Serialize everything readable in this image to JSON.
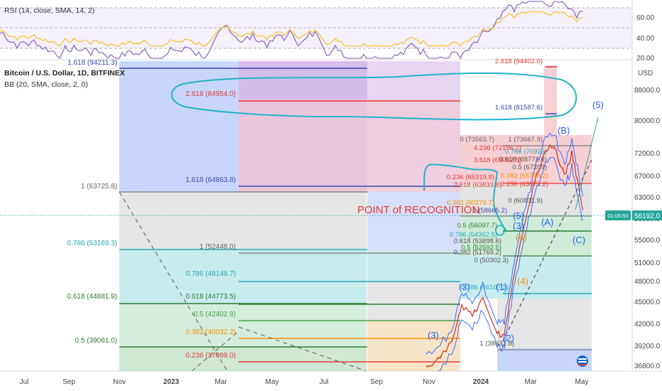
{
  "rsi": {
    "title": "RSI (14, close, SMA, 14, 2)",
    "ticks": [
      "60.00",
      "40.00",
      "20.00"
    ]
  },
  "header": {
    "title": "Bitcoin / U.S. Dollar, 1D, BITFINEX",
    "indicator": "BB (20, SMA, close, 2, 0)"
  },
  "price_axis": {
    "currency": "USD",
    "ticks": [
      "88000.0",
      "80000.0",
      "72000.0",
      "67000.0",
      "63000.0",
      "59000.0",
      "55000.0",
      "51000.0",
      "48000.0",
      "45000.0",
      "42000.0",
      "39200.0",
      "36800.0"
    ],
    "last_price": "56192.0",
    "last_price_small": "01:05:50"
  },
  "time_axis": {
    "ticks": [
      "Jul",
      "Sep",
      "Nov",
      "2023",
      "Mar",
      "May",
      "Jul",
      "Sep",
      "Nov",
      "2024",
      "Mar",
      "May"
    ]
  },
  "annotation": {
    "text": "POINT of RECOGNITION"
  },
  "colors": {
    "blue_zone": "#c9d6fb",
    "purple_zone": "#dcc3ef",
    "pink_zone": "#f7d0d4",
    "grey_zone": "#e6e6e6",
    "teal_zone": "#c8ebee",
    "green_zone": "#cfecd9",
    "orange_zone": "#fbe3c2",
    "annotation_red": "#e53935",
    "wave_blue": "#2962ff",
    "marker_cyan": "#1fb4c9"
  },
  "chart_data": {
    "type": "line",
    "fib_levels_left": [
      {
        "label": "1.618 (94211.3)"
      },
      {
        "label": "2.618 (84954.0)"
      },
      {
        "label": "1 (63725.8)"
      },
      {
        "label": "1.618 (64863.8)"
      },
      {
        "label": "0.786 (53169.3)"
      },
      {
        "label": "1 (52448.0)"
      },
      {
        "label": "0.786 (48148.7)"
      },
      {
        "label": "0.618 (44881.9)"
      },
      {
        "label": "0.618 (44773.5)"
      },
      {
        "label": "0.5 (42402.9)"
      },
      {
        "label": "0.382 (40032.2)"
      },
      {
        "label": "0.5 (39061.0)"
      },
      {
        "label": "0.236 (37099.0)"
      }
    ],
    "fib_levels_right": [
      {
        "label": "2.618 (94402.0)"
      },
      {
        "label": "1.618 (81587.6)"
      },
      {
        "label": "0 (73563.7)"
      },
      {
        "label": "1 (73667.9)"
      },
      {
        "label": "4.236 (72196.7)"
      },
      {
        "label": "0.786 (70925)"
      },
      {
        "label": "0.618 (68772.6)"
      },
      {
        "label": "0.5 (67209)"
      },
      {
        "label": "3.618 (69002.5)"
      },
      {
        "label": "0.236 (65319.8)"
      },
      {
        "label": "0.382 (65748.2)"
      },
      {
        "label": "2.618 (63833.8)"
      },
      {
        "label": "0.236 (63877.2)"
      },
      {
        "label": "0 (60831.9)"
      },
      {
        "label": "0.382 (60279.7)"
      },
      {
        "label": "1 (58665.2)"
      },
      {
        "label": "0.5 (56097.7)"
      },
      {
        "label": "0.786 (54362.5)"
      },
      {
        "label": "0.618 (53898.6)"
      },
      {
        "label": "0.5 (52592.5)"
      },
      {
        "label": "0.382 (51769.2)"
      },
      {
        "label": "0 (50302.3)"
      },
      {
        "label": "0.786 (46107.2)"
      },
      {
        "label": "1 (38631.8)"
      }
    ],
    "wave_labels": [
      "(5)",
      "(B)",
      "(A)",
      "(C)",
      "(5)",
      "(3)",
      "(4)",
      "(1)",
      "(2)",
      "(3)",
      "(4)",
      "(3)"
    ],
    "rsi_levels": [
      70,
      50,
      30
    ]
  }
}
